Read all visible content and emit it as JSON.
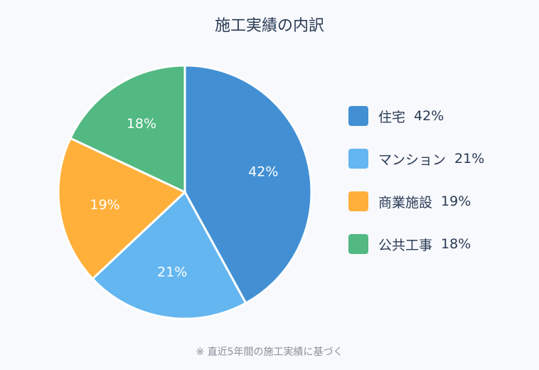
{
  "chart_data": {
    "type": "pie",
    "title": "施工実績の内訳",
    "categories": [
      "住宅",
      "マンション",
      "商業施設",
      "公共工事"
    ],
    "values": [
      42,
      21,
      19,
      18
    ],
    "labels": [
      "42%",
      "21%",
      "19%",
      "18%"
    ],
    "colors": [
      "#4290d3",
      "#64b6f0",
      "#ffb03b",
      "#52b982"
    ],
    "legend": "right"
  },
  "footnote": "※ 直近5年間の施工実績に基づく"
}
